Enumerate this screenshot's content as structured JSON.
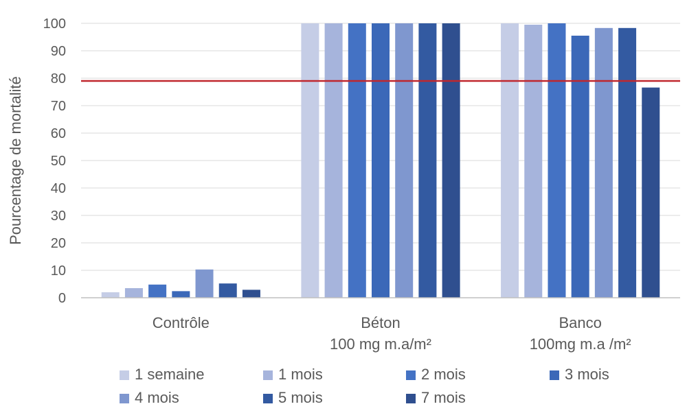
{
  "chart_data": {
    "type": "bar",
    "ylabel": "Pourcentage de mortalité",
    "ylim": [
      0,
      100
    ],
    "yticks": [
      "0",
      "10",
      "20",
      "30",
      "40",
      "50",
      "60",
      "70",
      "80",
      "90",
      "100"
    ],
    "grid": true,
    "legend_position": "bottom",
    "categories": [
      [
        "Contrôle"
      ],
      [
        "Béton",
        "100 mg m.a/m²"
      ],
      [
        "Banco",
        "100mg m.a /m²"
      ]
    ],
    "series": [
      {
        "name": "1 semaine",
        "values": [
          2,
          100,
          100
        ]
      },
      {
        "name": "1 mois",
        "values": [
          3.5,
          100,
          99.5
        ]
      },
      {
        "name": "2 mois",
        "values": [
          4.8,
          100,
          100
        ]
      },
      {
        "name": "3 mois",
        "values": [
          2.4,
          100,
          95.5
        ]
      },
      {
        "name": "4 mois",
        "values": [
          10.3,
          100,
          98.3
        ]
      },
      {
        "name": "5 mois",
        "values": [
          5.2,
          100,
          98.3
        ]
      },
      {
        "name": "7 mois",
        "values": [
          2.9,
          100,
          76.6
        ]
      }
    ],
    "reference_line": {
      "value": 79
    },
    "colors": {
      "series": [
        "#c5cde6",
        "#a6b4dc",
        "#4472c4",
        "#3b68b8",
        "#7f97cf",
        "#335aa1",
        "#2f4f8f"
      ],
      "reference_line": "#c0272d",
      "grid": "#d9d9d9",
      "axis": "#bfbfbf",
      "text": "#595959"
    }
  }
}
